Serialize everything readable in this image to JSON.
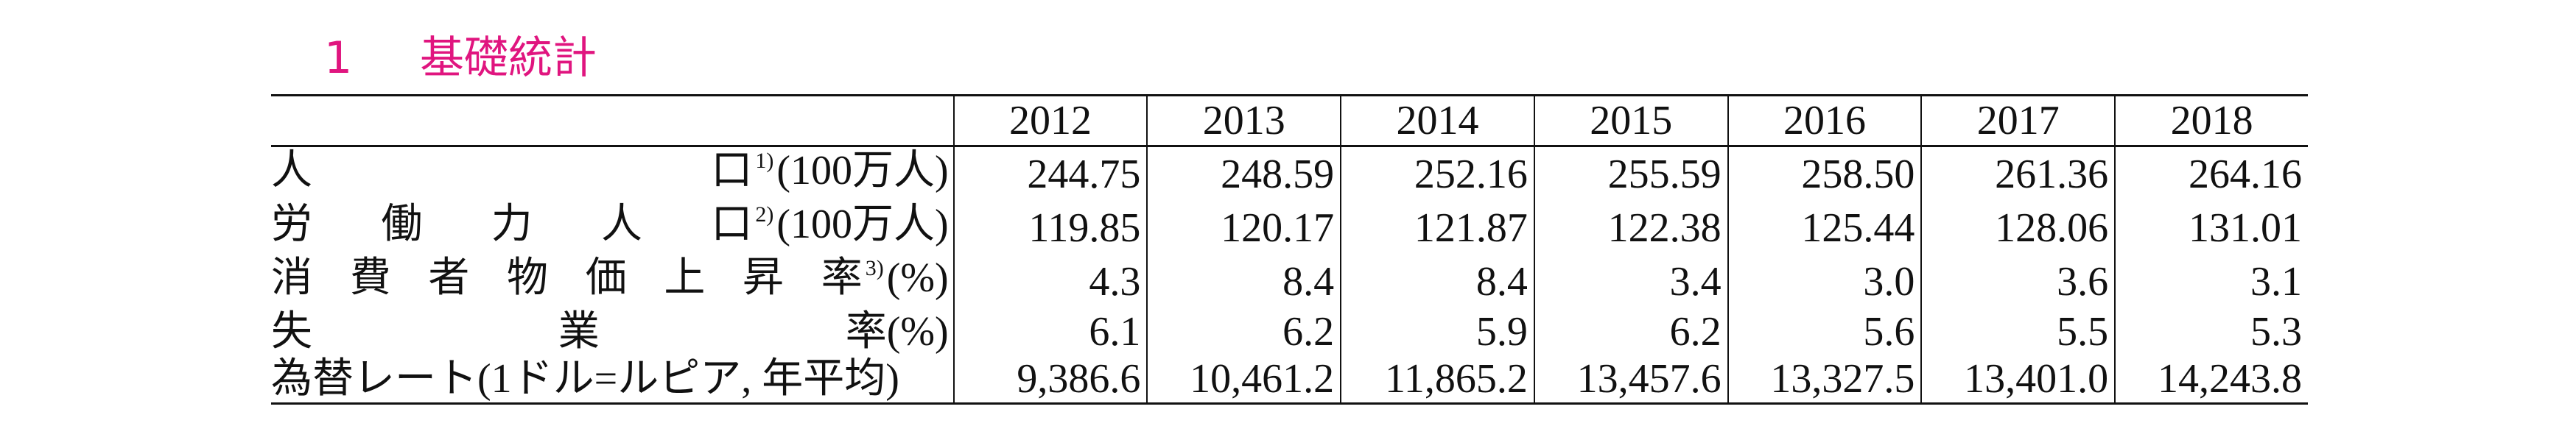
{
  "header": {
    "number": "1",
    "title": "基礎統計"
  },
  "table": {
    "columns": [
      "2012",
      "2013",
      "2014",
      "2015",
      "2016",
      "2017",
      "2018"
    ],
    "rows": [
      {
        "label": "人口",
        "note": "1)",
        "unit": "(100万人)",
        "values": [
          "244.75",
          "248.59",
          "252.16",
          "255.59",
          "258.50",
          "261.36",
          "264.16"
        ]
      },
      {
        "label": "労働力人口",
        "note": "2)",
        "unit": "(100万人)",
        "values": [
          "119.85",
          "120.17",
          "121.87",
          "122.38",
          "125.44",
          "128.06",
          "131.01"
        ]
      },
      {
        "label": "消費者物価上昇率",
        "note": "3)",
        "unit": "(%)",
        "values": [
          "4.3",
          "8.4",
          "8.4",
          "3.4",
          "3.0",
          "3.6",
          "3.1"
        ]
      },
      {
        "label": "失業率",
        "unit": "(%)",
        "values": [
          "6.1",
          "6.2",
          "5.9",
          "6.2",
          "5.6",
          "5.5",
          "5.3"
        ]
      },
      {
        "label": "為替レート(1ドル=ルピア, 年平均)",
        "values": [
          "9,386.6",
          "10,461.2",
          "11,865.2",
          "13,457.6",
          "13,327.5",
          "13,401.0",
          "14,243.8"
        ]
      }
    ]
  }
}
